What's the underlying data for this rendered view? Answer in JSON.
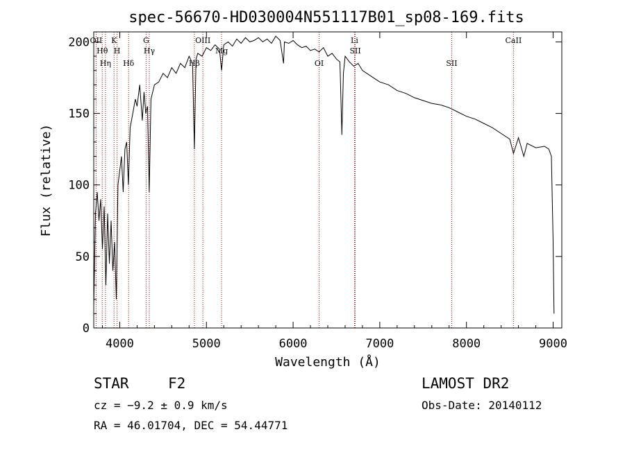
{
  "chart_data": {
    "type": "line",
    "title": "spec-56670-HD030004N551117B01_sp08-169.fits",
    "xlabel": "Wavelength (Å)",
    "ylabel": "Flux (relative)",
    "xlim": [
      3700,
      9100
    ],
    "ylim": [
      0,
      207
    ],
    "xticks": [
      4000,
      5000,
      6000,
      7000,
      8000,
      9000
    ],
    "yticks": [
      0,
      50,
      100,
      150,
      200
    ],
    "series": [
      {
        "name": "spectrum",
        "x": [
          3700,
          3720,
          3740,
          3760,
          3780,
          3800,
          3820,
          3840,
          3860,
          3880,
          3900,
          3920,
          3940,
          3960,
          3980,
          4000,
          4020,
          4040,
          4060,
          4080,
          4100,
          4120,
          4150,
          4180,
          4200,
          4230,
          4260,
          4280,
          4300,
          4320,
          4340,
          4360,
          4380,
          4400,
          4450,
          4500,
          4550,
          4600,
          4650,
          4700,
          4750,
          4800,
          4840,
          4861,
          4880,
          4900,
          4950,
          5000,
          5050,
          5100,
          5150,
          5175,
          5200,
          5250,
          5300,
          5350,
          5400,
          5450,
          5500,
          5550,
          5600,
          5650,
          5700,
          5750,
          5800,
          5850,
          5890,
          5900,
          5950,
          6000,
          6050,
          6100,
          6150,
          6200,
          6250,
          6300,
          6350,
          6400,
          6450,
          6500,
          6540,
          6563,
          6580,
          6600,
          6650,
          6700,
          6750,
          6800,
          6850,
          6900,
          6950,
          7000,
          7100,
          7200,
          7300,
          7400,
          7500,
          7600,
          7700,
          7800,
          7900,
          8000,
          8100,
          8200,
          8300,
          8400,
          8500,
          8542,
          8600,
          8662,
          8700,
          8800,
          8900,
          8950,
          8980,
          9000,
          9010
        ],
        "values": [
          15,
          80,
          95,
          75,
          90,
          55,
          85,
          30,
          80,
          45,
          75,
          40,
          60,
          20,
          100,
          110,
          120,
          95,
          125,
          130,
          100,
          140,
          150,
          160,
          155,
          170,
          145,
          165,
          150,
          155,
          95,
          160,
          165,
          170,
          172,
          178,
          175,
          182,
          178,
          185,
          182,
          190,
          185,
          125,
          188,
          192,
          190,
          196,
          194,
          198,
          195,
          180,
          198,
          200,
          197,
          202,
          199,
          203,
          200,
          201,
          203,
          200,
          202,
          199,
          204,
          201,
          185,
          200,
          199,
          201,
          198,
          196,
          197,
          194,
          195,
          193,
          196,
          190,
          192,
          188,
          186,
          135,
          178,
          190,
          186,
          183,
          185,
          180,
          178,
          176,
          174,
          172,
          170,
          166,
          164,
          161,
          159,
          157,
          156,
          154,
          151,
          148,
          146,
          143,
          140,
          136,
          132,
          122,
          133,
          120,
          129,
          126,
          127,
          125,
          120,
          60,
          10
        ]
      }
    ],
    "line_markers": [
      {
        "label": "OII",
        "wavelength": 3727
      },
      {
        "label": "Hθ",
        "wavelength": 3798
      },
      {
        "label": "Hη",
        "wavelength": 3835
      },
      {
        "label": "K",
        "wavelength": 3934
      },
      {
        "label": "H",
        "wavelength": 3969
      },
      {
        "label": "Hδ",
        "wavelength": 4102
      },
      {
        "label": "G",
        "wavelength": 4304
      },
      {
        "label": "Hγ",
        "wavelength": 4341
      },
      {
        "label": "Hβ",
        "wavelength": 4861
      },
      {
        "label": "OIII",
        "wavelength": 4959
      },
      {
        "label": "Mg",
        "wavelength": 5175
      },
      {
        "label": "OI",
        "wavelength": 6300
      },
      {
        "label": "Li",
        "wavelength": 6708
      },
      {
        "label": "SII",
        "wavelength": 6717
      },
      {
        "label": "SII",
        "wavelength": 7830
      },
      {
        "label": "CaII",
        "wavelength": 8542
      }
    ]
  },
  "info": {
    "object_class": "STAR",
    "subclass": "F2",
    "survey": "LAMOST DR2",
    "velocity": "cz = −9.2 ± 0.9 km/s",
    "obs_date": "Obs-Date: 20140112",
    "coordinates": "RA =  46.01704, DEC =  54.44771"
  },
  "colors": {
    "spectrum": "#000000",
    "marker": "#b00000",
    "axis": "#000000"
  }
}
